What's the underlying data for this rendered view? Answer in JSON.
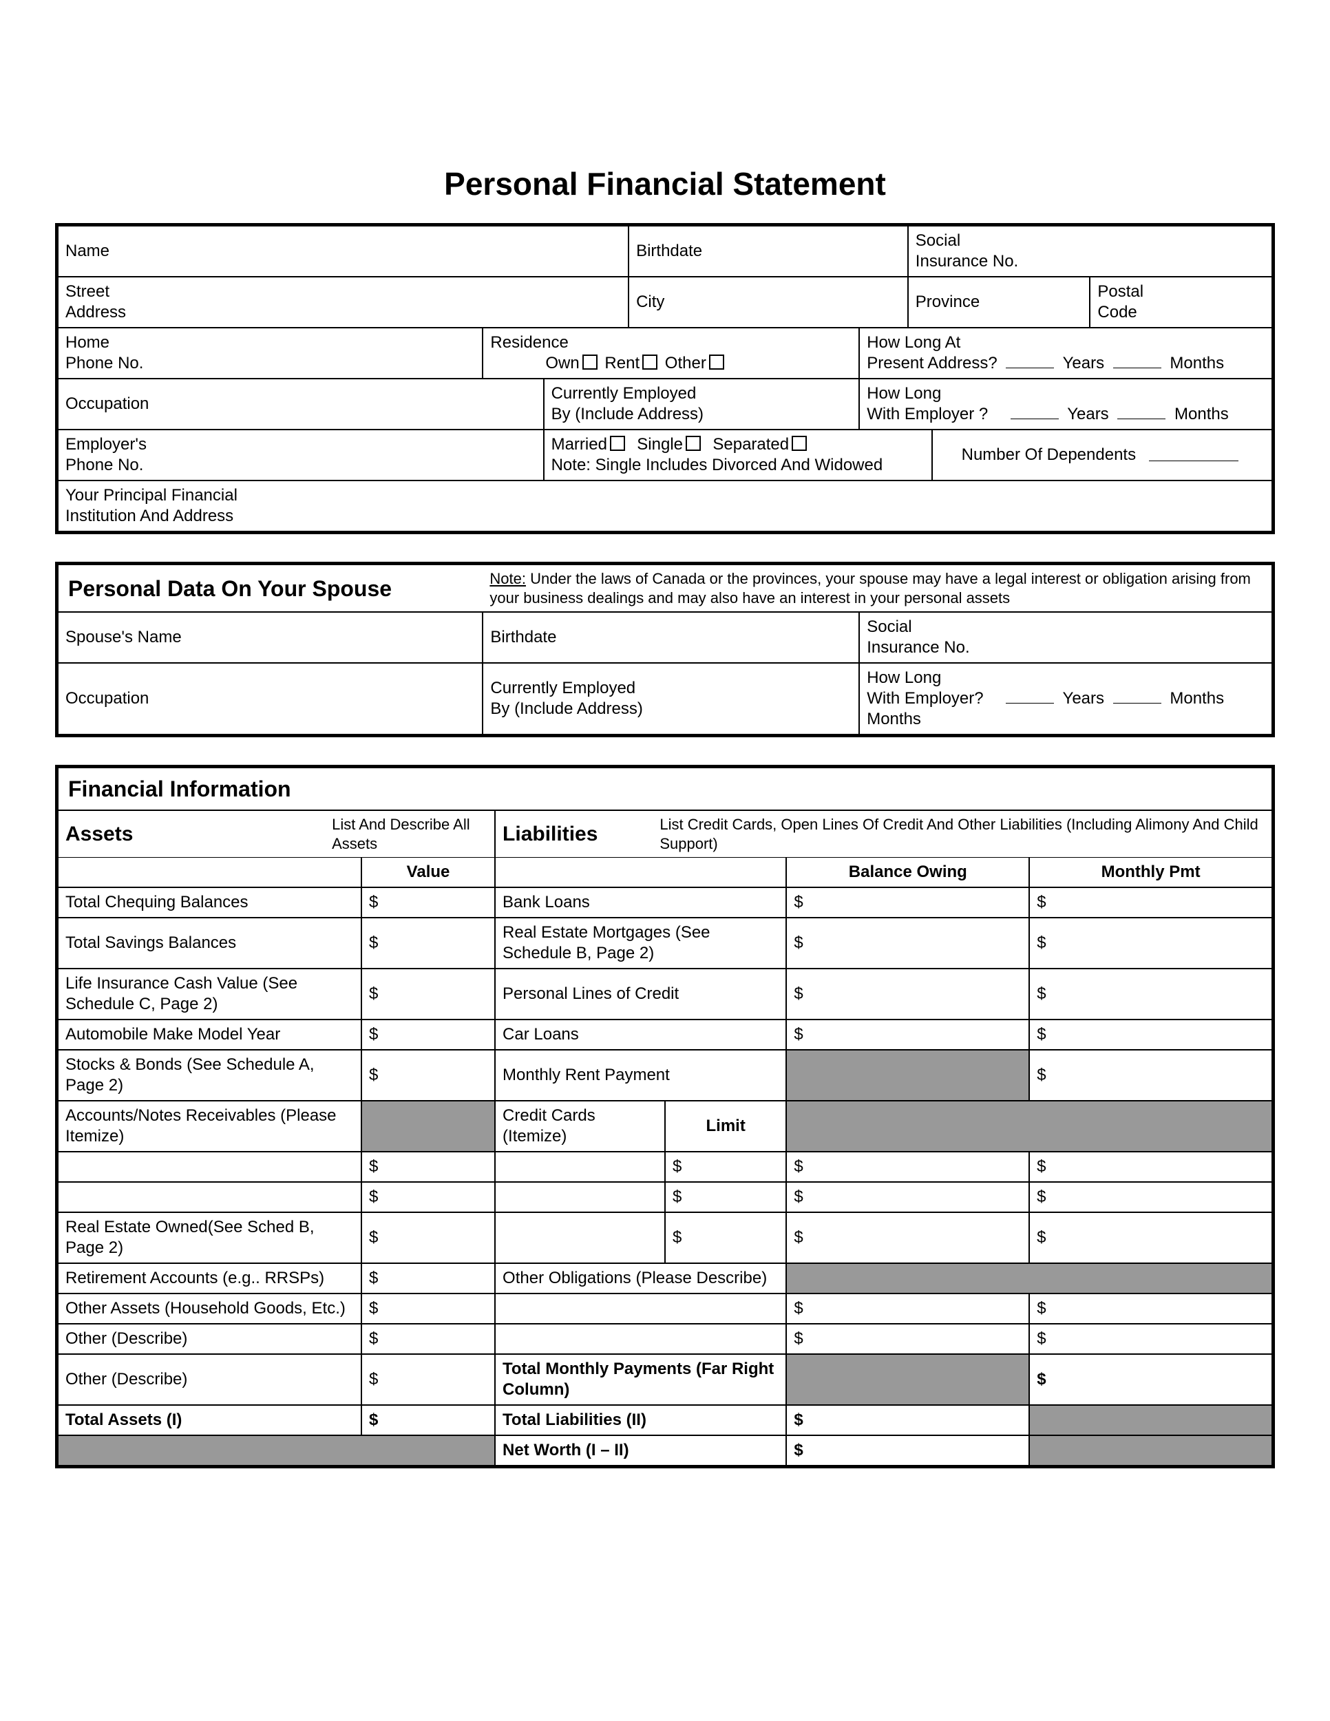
{
  "title": "Personal Financial Statement",
  "colors": {
    "border": "#000000",
    "shade": "#999999",
    "bg": "#ffffff"
  },
  "personal": {
    "name": "Name",
    "birthdate": "Birthdate",
    "sin1": "Social",
    "sin2": "Insurance No.",
    "street1": "Street",
    "street2": "Address",
    "city": "City",
    "province": "Province",
    "postal1": "Postal",
    "postal2": "Code",
    "homePhone1": "Home",
    "homePhone2": "Phone No.",
    "residence": "Residence",
    "resOwn": "Own",
    "resRent": "Rent",
    "resOther": "Other",
    "howLongAddr1": "How Long At",
    "howLongAddr2": "Present Address?",
    "years": "Years",
    "months": "Months",
    "occupation": "Occupation",
    "employed1": "Currently Employed",
    "employed2": "By (Include Address)",
    "howLongEmp1": "How Long",
    "howLongEmp2": "With Employer ?",
    "empPhone1": "Employer's",
    "empPhone2": "Phone No.",
    "married": "Married",
    "single": "Single",
    "separated": "Separated",
    "maritalNote": "Note: Single Includes Divorced And Widowed",
    "dependents": "Number Of Dependents",
    "institution1": "Your Principal Financial",
    "institution2": "Institution And Address"
  },
  "spouse": {
    "heading": "Personal Data On Your Spouse",
    "noteLabel": "Note:",
    "note": " Under the laws of Canada or the provinces, your spouse may have a legal interest or obligation arising from your business dealings and may also have an interest in your personal assets",
    "name": "Spouse's Name",
    "birthdate": "Birthdate",
    "sin1": "Social",
    "sin2": "Insurance No.",
    "occupation": "Occupation",
    "employed1": "Currently Employed",
    "employed2": "By (Include Address)",
    "howLong1": "How Long",
    "howLong2": "With Employer?",
    "howLong3": "Months",
    "years": "Years",
    "months": "Months"
  },
  "fin": {
    "heading": "Financial Information",
    "assets": "Assets",
    "assetsDesc": "List And Describe All Assets",
    "liabilities": "Liabilities",
    "liabilitiesDesc": "List Credit Cards, Open Lines Of Credit And Other Liabilities (Including Alimony And Child Support)",
    "value": "Value",
    "balanceOwing": "Balance Owing",
    "monthlyPmt": "Monthly Pmt",
    "dollar": "$",
    "limit": "Limit",
    "assetRows": [
      "Total Chequing Balances",
      "Total Savings Balances",
      "Life Insurance Cash Value (See Schedule C, Page 2)",
      "Automobile Make Model Year",
      "Stocks & Bonds (See Schedule A, Page 2)",
      "Accounts/Notes Receivables (Please Itemize)"
    ],
    "liabRows": [
      "Bank Loans",
      "Real Estate Mortgages (See Schedule B, Page 2)",
      "Personal Lines of Credit",
      "Car Loans",
      "Monthly Rent Payment",
      "Credit Cards (Itemize)"
    ],
    "realEstate": "Real Estate Owned(See Sched B, Page 2)",
    "retirement": "Retirement Accounts (e.g.. RRSPs)",
    "otherObligations": "Other Obligations (Please Describe)",
    "otherAssets": "Other Assets (Household Goods, Etc.)",
    "otherDescribe": "Other (Describe)",
    "totalMonthly": "Total Monthly Payments (Far Right Column)",
    "totalAssets": "Total Assets (I)",
    "totalLiabilities": "Total Liabilities (II)",
    "netWorth": "Net Worth (I – II)"
  }
}
